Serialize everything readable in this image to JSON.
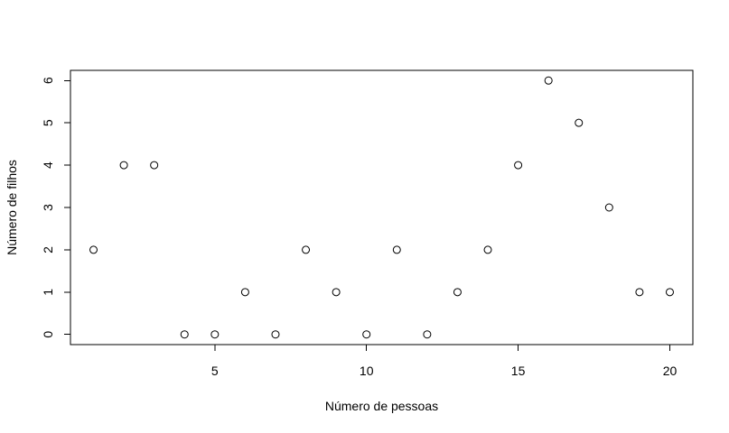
{
  "chart_data": {
    "type": "scatter",
    "title": "",
    "xlabel": "Número de pessoas",
    "ylabel": "Número de filhos",
    "x": [
      1,
      2,
      3,
      4,
      5,
      6,
      7,
      8,
      9,
      10,
      11,
      12,
      13,
      14,
      15,
      16,
      17,
      18,
      19,
      20
    ],
    "y": [
      2,
      4,
      4,
      0,
      0,
      1,
      0,
      2,
      1,
      0,
      2,
      0,
      1,
      2,
      4,
      6,
      5,
      3,
      1,
      1
    ],
    "xlim": [
      0.24,
      20.76
    ],
    "ylim": [
      -0.24,
      6.24
    ],
    "x_ticks": [
      5,
      10,
      15,
      20
    ],
    "y_ticks": [
      0,
      1,
      2,
      3,
      4,
      5,
      6
    ],
    "x_tick_labels": [
      "5",
      "10",
      "15",
      "20"
    ],
    "y_tick_labels": [
      "0",
      "1",
      "2",
      "3",
      "4",
      "5",
      "6"
    ],
    "marker": "open-circle",
    "marker_color": "#000000",
    "grid": false,
    "legend": "none"
  }
}
